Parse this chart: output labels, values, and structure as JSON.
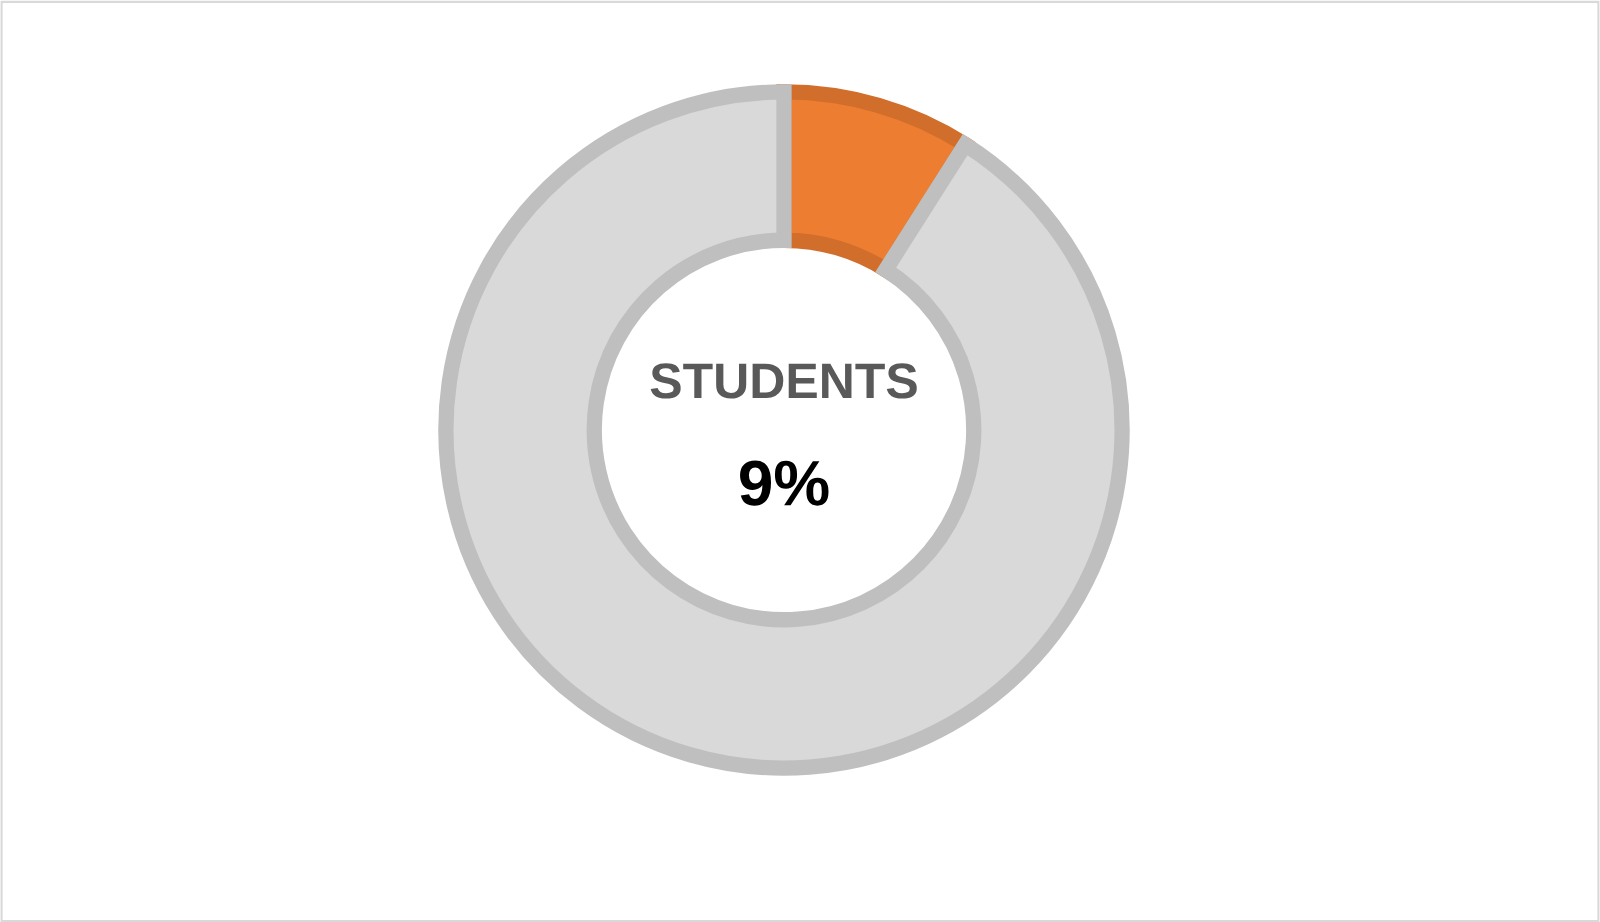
{
  "chart_data": {
    "type": "donut",
    "title": "STUDENTS",
    "categories": [
      null,
      null
    ],
    "values": [
      9,
      91
    ],
    "colors": [
      "#ed7d31",
      "#d9d9d9"
    ],
    "annotations": [
      "9%"
    ]
  }
}
